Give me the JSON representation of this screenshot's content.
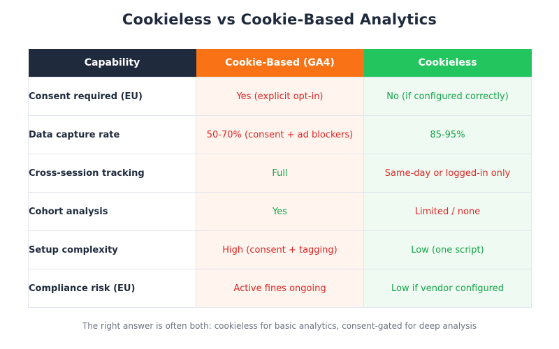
{
  "title": "Cookieless vs Cookie-Based Analytics",
  "columns": {
    "capability": "Capability",
    "cookie_based": "Cookie-Based (GA4)",
    "cookieless": "Cookieless"
  },
  "colors": {
    "header_dark": "#1f2a3c",
    "header_orange": "#f97316",
    "header_green": "#22c55e",
    "positive_text": "#16a34a",
    "negative_text": "#dc2626"
  },
  "rows": [
    {
      "capability": "Consent required (EU)",
      "cookie_based": "Yes (explicit opt-in)",
      "cookie_based_status": "negative",
      "cookieless": "No (if configured correctly)",
      "cookieless_status": "positive"
    },
    {
      "capability": "Data capture rate",
      "cookie_based": "50-70% (consent + ad blockers)",
      "cookie_based_status": "negative",
      "cookieless": "85-95%",
      "cookieless_status": "positive"
    },
    {
      "capability": "Cross-session tracking",
      "cookie_based": "Full",
      "cookie_based_status": "positive",
      "cookieless": "Same-day or logged-in only",
      "cookieless_status": "negative"
    },
    {
      "capability": "Cohort analysis",
      "cookie_based": "Yes",
      "cookie_based_status": "positive",
      "cookieless": "Limited / none",
      "cookieless_status": "negative"
    },
    {
      "capability": "Setup complexity",
      "cookie_based": "High (consent + tagging)",
      "cookie_based_status": "negative",
      "cookieless": "Low (one script)",
      "cookieless_status": "positive"
    },
    {
      "capability": "Compliance risk (EU)",
      "cookie_based": "Active fines ongoing",
      "cookie_based_status": "negative",
      "cookieless": "Low if vendor configured",
      "cookieless_status": "positive"
    }
  ],
  "footer": "The right answer is often both: cookieless for basic analytics, consent-gated for deep analysis"
}
